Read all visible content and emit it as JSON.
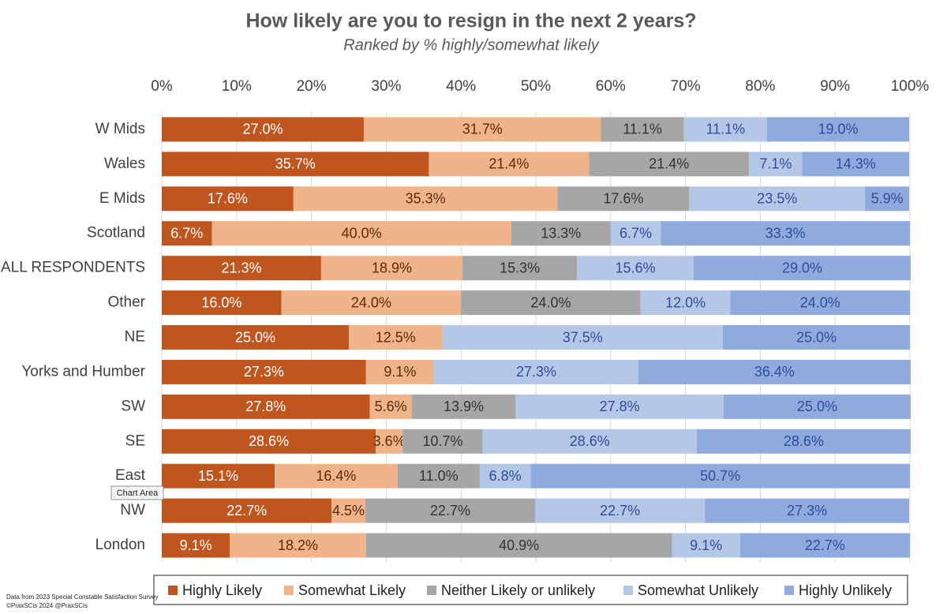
{
  "chart_data": {
    "type": "stacked-bar-horizontal",
    "title": "How likely are you to resign in the next 2 years?",
    "subtitle": "Ranked by % highly/somewhat likely",
    "categories": [
      "W Mids",
      "Wales",
      "E Mids",
      "Scotland",
      "ALL RESPONDENTS",
      "Other",
      "NE",
      "Yorks and Humber",
      "SW",
      "SE",
      "East",
      "NW",
      "London"
    ],
    "series": [
      {
        "name": "Highly Likely",
        "color": "#c0561f",
        "values": [
          27.0,
          35.7,
          17.6,
          6.7,
          21.3,
          16.0,
          25.0,
          27.3,
          27.8,
          28.6,
          15.1,
          22.7,
          9.1
        ],
        "value_labels": [
          "27.0%",
          "35.7%",
          "17.6%",
          "6.7%",
          "21.3%",
          "16.0%",
          "25.0%",
          "27.3%",
          "27.8%",
          "28.6%",
          "15.1%",
          "22.7%",
          "9.1%"
        ]
      },
      {
        "name": "Somewhat Likely",
        "color": "#f0b48a",
        "values": [
          31.7,
          21.4,
          35.3,
          40.0,
          18.9,
          24.0,
          12.5,
          9.1,
          5.6,
          3.6,
          16.4,
          4.5,
          18.2
        ],
        "value_labels": [
          "31.7%",
          "21.4%",
          "35.3%",
          "40.0%",
          "18.9%",
          "24.0%",
          "12.5%",
          "9.1%",
          "5.6%",
          "3.6%",
          "16.4%",
          "4.5%",
          "18.2%"
        ]
      },
      {
        "name": "Neither Likely or unlikely",
        "color": "#a6a6a6",
        "values": [
          11.1,
          21.4,
          17.6,
          13.3,
          15.3,
          24.0,
          null,
          null,
          13.9,
          10.7,
          11.0,
          22.7,
          40.9
        ],
        "value_labels": [
          "11.1%",
          "21.4%",
          "17.6%",
          "13.3%",
          "15.3%",
          "24.0%",
          null,
          null,
          "13.9%",
          "10.7%",
          "11.0%",
          "22.7%",
          "40.9%"
        ]
      },
      {
        "name": "Somewhat Unlikely",
        "color": "#b4c7e7",
        "values": [
          11.1,
          7.1,
          23.5,
          6.7,
          15.6,
          12.0,
          37.5,
          27.3,
          27.8,
          28.6,
          6.8,
          22.7,
          9.1
        ],
        "value_labels": [
          "11.1%",
          "7.1%",
          "23.5%",
          "6.7%",
          "15.6%",
          "12.0%",
          "37.5%",
          "27.3%",
          "27.8%",
          "28.6%",
          "6.8%",
          "22.7%",
          "9.1%"
        ]
      },
      {
        "name": "Highly Unlikely",
        "color": "#8faadc",
        "values": [
          19.0,
          14.3,
          5.9,
          33.3,
          29.0,
          24.0,
          25.0,
          36.4,
          25.0,
          28.6,
          50.7,
          27.3,
          22.7
        ],
        "value_labels": [
          "19.0%",
          "14.3%",
          "5.9%",
          "33.3%",
          "29.0%",
          "24.0%",
          "25.0%",
          "36.4%",
          "25.0%",
          "28.6%",
          "50.7%",
          "27.3%",
          "22.7%"
        ]
      }
    ],
    "xlim": [
      0,
      100
    ],
    "xticks": [
      {
        "value": 0,
        "label": "0%"
      },
      {
        "value": 10,
        "label": "10%"
      },
      {
        "value": 20,
        "label": "20%"
      },
      {
        "value": 30,
        "label": "30%"
      },
      {
        "value": 40,
        "label": "40%"
      },
      {
        "value": 50,
        "label": "50%"
      },
      {
        "value": 60,
        "label": "60%"
      },
      {
        "value": 70,
        "label": "70%"
      },
      {
        "value": 80,
        "label": "80%"
      },
      {
        "value": 90,
        "label": "90%"
      },
      {
        "value": 100,
        "label": "100%"
      }
    ],
    "grid": true,
    "legend": "bottom",
    "footnotes": [
      "Data from 2023 Special Constable Satisfaction Survey",
      "©PraxSCis 2024     @PraxSCis"
    ],
    "tooltip": "Chart Area"
  }
}
